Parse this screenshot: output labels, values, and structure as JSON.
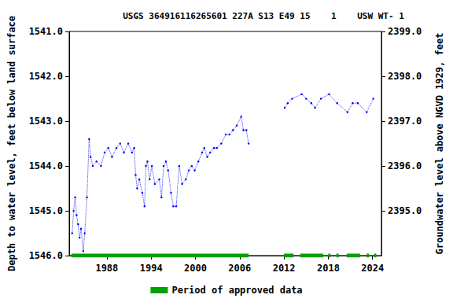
{
  "chart_data": {
    "type": "line",
    "title": "USGS 364916116265601 227A S13 E49 15    1    USW WT- 1",
    "y_label": "Depth to water level, feet below land surface",
    "y2_label": "Groundwater level above NGVD 1929, feet",
    "xlim": [
      1982.9,
      2025.2
    ],
    "xticks": [
      1988,
      1994,
      2000,
      2006,
      2012,
      2018,
      2024
    ],
    "ylim": [
      1546,
      1541
    ],
    "yticks": [
      {
        "value": 1541,
        "label": "1541.0"
      },
      {
        "value": 1542,
        "label": "1542.0"
      },
      {
        "value": 1543,
        "label": "1543.0"
      },
      {
        "value": 1544,
        "label": "1544.0"
      },
      {
        "value": 1545,
        "label": "1545.0"
      },
      {
        "value": 1546,
        "label": "1546.0"
      }
    ],
    "y2lim": [
      2394,
      2399
    ],
    "y2ticks": [
      {
        "value": 2395,
        "label": "2395.0"
      },
      {
        "value": 2396,
        "label": "2396.0"
      },
      {
        "value": 2397,
        "label": "2397.0"
      },
      {
        "value": 2398,
        "label": "2398.0"
      },
      {
        "value": 2399,
        "label": "2399.0"
      }
    ],
    "legend": "bottom",
    "grid": false,
    "series": [
      {
        "color": "#0000ff",
        "marker": "circle",
        "line_style": "dotted",
        "x": [
          1983.3,
          1983.5,
          1983.7,
          1983.9,
          1984.1,
          1984.3,
          1984.5,
          1984.8,
          1985.0,
          1985.3,
          1985.6,
          1985.8,
          1986.1,
          1986.6,
          1987.2,
          1987.7,
          1988.2,
          1988.7,
          1989.3,
          1989.8,
          1990.3,
          1990.9,
          1991.4,
          1991.7,
          1991.9,
          1992.1,
          1992.4,
          1992.8,
          1993.1,
          1993.3,
          1993.5,
          1993.8,
          1994.1,
          1994.5,
          1995.1,
          1995.4,
          1995.7,
          1996.0,
          1996.3,
          1996.7,
          1997.0,
          1997.4,
          1997.8,
          1998.2,
          1998.7,
          1999.1,
          1999.5,
          1999.9,
          2000.4,
          2000.9,
          2001.2,
          2001.6,
          2002.0,
          2002.5,
          2002.9,
          2003.5,
          2004.1,
          2004.6,
          2005.1,
          2005.6,
          2006.2,
          2006.5,
          2006.9,
          2007.2,
          2009.5,
          2012.1,
          2012.5,
          2013.1,
          2014.4,
          2015.0,
          2015.7,
          2016.2,
          2017.0,
          2018.1,
          2019.2,
          2020.6,
          2021.3,
          2022.0,
          2023.2,
          2024.1
        ],
        "values": [
          1545.5,
          1545.0,
          1544.7,
          1545.1,
          1545.3,
          1545.6,
          1545.4,
          1545.9,
          1545.5,
          1544.7,
          1543.4,
          1543.8,
          1544.0,
          1543.9,
          1544.0,
          1543.7,
          1543.6,
          1543.8,
          1543.6,
          1543.5,
          1543.7,
          1543.5,
          1543.7,
          1543.6,
          1544.2,
          1544.5,
          1544.3,
          1544.6,
          1544.9,
          1544.0,
          1543.9,
          1544.3,
          1544.0,
          1544.4,
          1544.3,
          1544.7,
          1544.0,
          1543.9,
          1544.1,
          1544.6,
          1544.9,
          1544.9,
          1544.0,
          1544.4,
          1544.3,
          1544.1,
          1544.0,
          1544.1,
          1543.9,
          1543.7,
          1543.6,
          1543.8,
          1543.7,
          1543.6,
          1543.6,
          1543.5,
          1543.3,
          1543.3,
          1543.2,
          1543.1,
          1542.9,
          1543.2,
          1543.2,
          1543.5,
          null,
          1542.7,
          1542.6,
          1542.5,
          1542.4,
          1542.5,
          1542.6,
          1542.7,
          1542.5,
          1542.4,
          1542.6,
          1542.8,
          1542.6,
          1542.6,
          1542.8,
          1542.5
        ]
      },
      {
        "name": "Period of approved data",
        "color": "#00a000",
        "marker": "none",
        "line_style": "solid",
        "x": [
          1983.2,
          2007.2,
          2009.5,
          2012.0,
          2013.3,
          2013.7,
          2014.2,
          2017.3,
          2017.6,
          2018.0,
          2018.3,
          2018.6,
          2019.1,
          2019.4,
          2019.9,
          2020.5,
          2022.3,
          2022.7,
          2023.2,
          2023.5,
          2023.8,
          2024.2,
          2024.5
        ],
        "values": [
          1546,
          1546,
          null,
          1546,
          1546,
          null,
          1546,
          1546,
          null,
          1546,
          1546,
          null,
          1546,
          1546,
          null,
          1546,
          1546,
          null,
          1546,
          1546,
          null,
          1546,
          1546
        ]
      }
    ]
  }
}
